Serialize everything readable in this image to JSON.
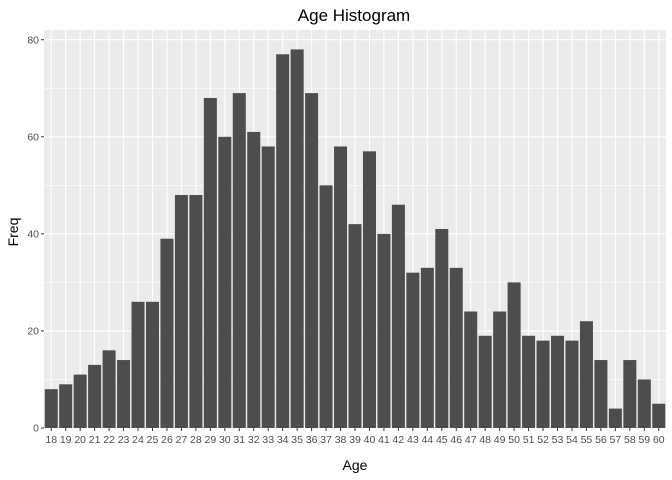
{
  "chart_data": {
    "type": "bar",
    "title": "Age Histogram",
    "xlabel": "Age",
    "ylabel": "Freq",
    "categories": [
      "18",
      "19",
      "20",
      "21",
      "22",
      "23",
      "24",
      "25",
      "26",
      "27",
      "28",
      "29",
      "30",
      "31",
      "32",
      "33",
      "34",
      "35",
      "36",
      "37",
      "38",
      "39",
      "40",
      "41",
      "42",
      "43",
      "44",
      "45",
      "46",
      "47",
      "48",
      "49",
      "50",
      "51",
      "52",
      "53",
      "54",
      "55",
      "56",
      "57",
      "58",
      "59",
      "60"
    ],
    "values": [
      8,
      9,
      11,
      13,
      16,
      14,
      26,
      26,
      39,
      48,
      48,
      68,
      60,
      69,
      61,
      58,
      77,
      78,
      69,
      50,
      58,
      42,
      57,
      40,
      46,
      32,
      33,
      41,
      33,
      24,
      19,
      24,
      30,
      19,
      18,
      19,
      18,
      22,
      14,
      4,
      14,
      10,
      5
    ],
    "y_ticks": [
      "0",
      "20",
      "40",
      "60",
      "80"
    ],
    "ylim": [
      0,
      82
    ],
    "grid": true,
    "colors": {
      "bar": "#4d4d4d",
      "panel": "#ebebeb",
      "grid": "#ffffff"
    }
  }
}
